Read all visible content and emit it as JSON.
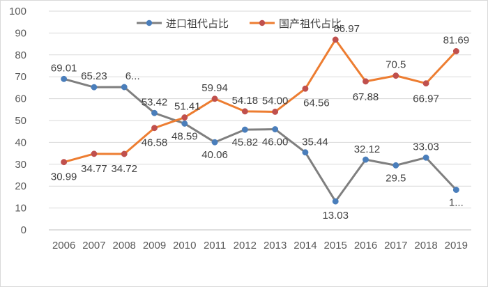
{
  "chart_data": {
    "type": "line",
    "title": "",
    "xlabel": "",
    "ylabel": "",
    "ylim": [
      0,
      100
    ],
    "yticks": [
      0,
      10,
      20,
      30,
      40,
      50,
      60,
      70,
      80,
      90,
      100
    ],
    "categories": [
      "2006",
      "2007",
      "2008",
      "2009",
      "2010",
      "2011",
      "2012",
      "2013",
      "2014",
      "2015",
      "2016",
      "2017",
      "2018",
      "2019"
    ],
    "grid": true,
    "legend_position": "top",
    "series": [
      {
        "name": "进口祖代占比",
        "color": "#7f7f7f",
        "marker_color": "#4a7ebb",
        "values": [
          69.01,
          65.23,
          65.28,
          53.42,
          48.59,
          40.06,
          45.82,
          46.0,
          35.44,
          13.03,
          32.12,
          29.5,
          33.03,
          18.31
        ],
        "labels": [
          "69.01",
          "65.23",
          "6...",
          "53.42",
          "48.59",
          "40.06",
          "45.82",
          "46.00",
          "35.44",
          "13.03",
          "32.12",
          "29.5",
          "33.03",
          "1..."
        ]
      },
      {
        "name": "国产祖代占比",
        "color": "#ed7d31",
        "marker_color": "#c0504d",
        "values": [
          30.99,
          34.77,
          34.72,
          46.58,
          51.41,
          59.94,
          54.18,
          54.0,
          64.56,
          86.97,
          67.88,
          70.5,
          66.97,
          81.69
        ],
        "labels": [
          "30.99",
          "34.77",
          "34.72",
          "46.58",
          "51.41",
          "59.94",
          "54.18",
          "54.00",
          "64.56",
          "86.97",
          "67.88",
          "70.5",
          "66.97",
          "81.69"
        ]
      }
    ]
  }
}
